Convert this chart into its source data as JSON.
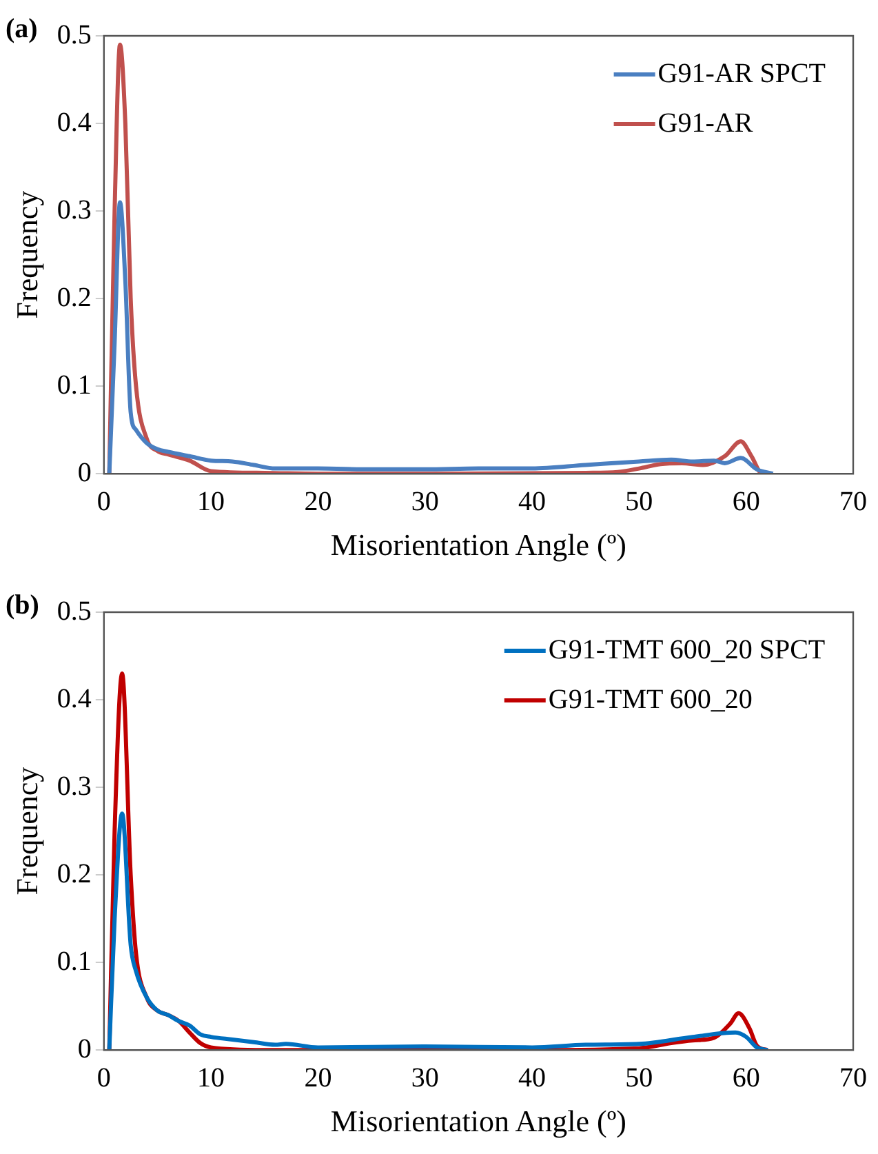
{
  "chart_data": [
    {
      "type": "line",
      "title": "(a)",
      "xlabel": "Misorientation Angle (º)",
      "ylabel": "Frequency",
      "xlim": [
        0,
        70
      ],
      "xticks": [
        0,
        10,
        20,
        30,
        40,
        50,
        60,
        70
      ],
      "ylim": [
        0,
        0.5
      ],
      "yticks": [
        0,
        0.1,
        0.2,
        0.3,
        0.4,
        0.5
      ],
      "grid": false,
      "legend": "top right",
      "marker": "none",
      "line_style": "solid",
      "series": [
        {
          "name": "G91-AR SPCT",
          "color": "#4a7fc1",
          "x": [
            0.5,
            1,
            1.5,
            2,
            2.5,
            3,
            4,
            5,
            6,
            8,
            10,
            12,
            14,
            16,
            20,
            25,
            30,
            35,
            40,
            45,
            50,
            53,
            55,
            57,
            58,
            59.5,
            61,
            62.5
          ],
          "values": [
            0,
            0.15,
            0.31,
            0.22,
            0.07,
            0.05,
            0.035,
            0.028,
            0.025,
            0.02,
            0.015,
            0.014,
            0.01,
            0.006,
            0.006,
            0.005,
            0.005,
            0.006,
            0.006,
            0.01,
            0.014,
            0.016,
            0.014,
            0.015,
            0.012,
            0.018,
            0.005,
            0
          ]
        },
        {
          "name": "G91-AR",
          "color": "#c0504d",
          "x": [
            0.5,
            1,
            1.5,
            2,
            2.5,
            3,
            4,
            5,
            6,
            8,
            10,
            15,
            20,
            30,
            45,
            48,
            50,
            52,
            54,
            56,
            58,
            59.5,
            60.5,
            61.5,
            62
          ],
          "values": [
            0,
            0.3,
            0.49,
            0.4,
            0.2,
            0.1,
            0.04,
            0.026,
            0.022,
            0.015,
            0.003,
            0.001,
            0,
            0,
            0.001,
            0.002,
            0.006,
            0.011,
            0.012,
            0.01,
            0.02,
            0.037,
            0.02,
            0,
            0
          ]
        }
      ]
    },
    {
      "type": "line",
      "title": "(b)",
      "xlabel": "Misorientation Angle (º)",
      "ylabel": "Frequency",
      "xlim": [
        0,
        70
      ],
      "xticks": [
        0,
        10,
        20,
        30,
        40,
        50,
        60,
        70
      ],
      "ylim": [
        0,
        0.5
      ],
      "yticks": [
        0,
        0.1,
        0.2,
        0.3,
        0.4,
        0.5
      ],
      "grid": false,
      "legend": "top right",
      "marker": "none",
      "line_style": "solid",
      "series": [
        {
          "name": "G91-TMT 600_20 SPCT",
          "color": "#0070c0",
          "x": [
            0.5,
            1,
            1.7,
            2.5,
            3,
            4,
            5,
            6,
            7,
            8,
            9,
            10,
            12,
            14,
            16,
            17,
            20,
            30,
            40,
            45,
            50,
            55,
            59,
            60,
            61,
            62
          ],
          "values": [
            0,
            0.15,
            0.27,
            0.12,
            0.09,
            0.06,
            0.045,
            0.04,
            0.033,
            0.028,
            0.018,
            0.015,
            0.012,
            0.009,
            0.006,
            0.007,
            0.003,
            0.004,
            0.003,
            0.006,
            0.007,
            0.015,
            0.02,
            0.015,
            0.003,
            0
          ]
        },
        {
          "name": "G91-TMT 600_20",
          "color": "#c00000",
          "x": [
            0.5,
            1,
            1.7,
            2.5,
            3,
            4,
            5,
            6,
            7,
            8,
            9,
            10,
            15,
            40,
            50,
            53,
            55,
            57,
            58.5,
            59.3,
            60.3,
            61,
            62
          ],
          "values": [
            0,
            0.25,
            0.43,
            0.2,
            0.11,
            0.06,
            0.045,
            0.04,
            0.033,
            0.02,
            0.008,
            0.003,
            0,
            0,
            0.002,
            0.008,
            0.011,
            0.014,
            0.03,
            0.042,
            0.025,
            0.005,
            0
          ]
        }
      ]
    }
  ]
}
